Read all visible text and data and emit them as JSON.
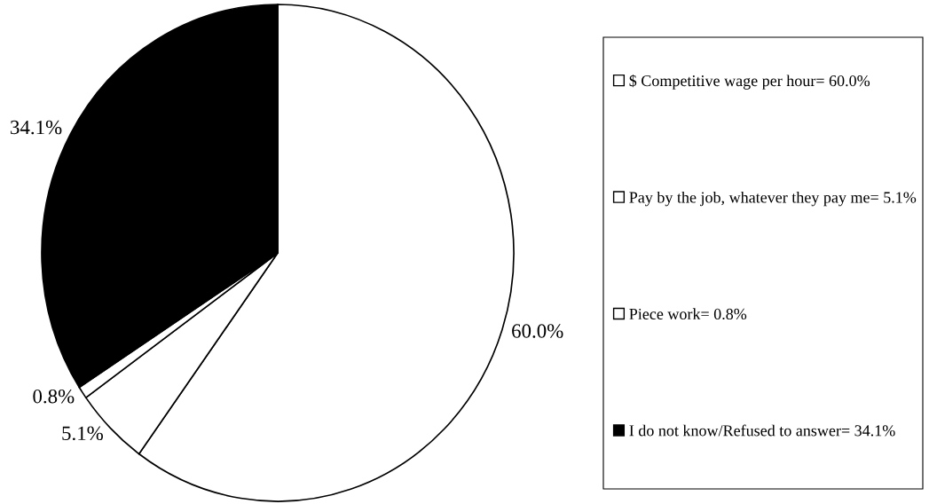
{
  "chart_data": {
    "type": "pie",
    "categories": [
      "$ Competitive wage per hour= 60.0%",
      "Pay by the job, whatever they pay me= 5.1%",
      "Piece work= 0.8%",
      "I do not know/Refused to answer= 34.1%"
    ],
    "values": [
      60.0,
      5.1,
      0.8,
      34.1
    ],
    "colors": [
      "#ffffff",
      "#ffffff",
      "#ffffff",
      "#000000"
    ],
    "value_labels": [
      "60.0%",
      "5.1%",
      "0.8%",
      "34.1%"
    ],
    "legend": "right"
  }
}
